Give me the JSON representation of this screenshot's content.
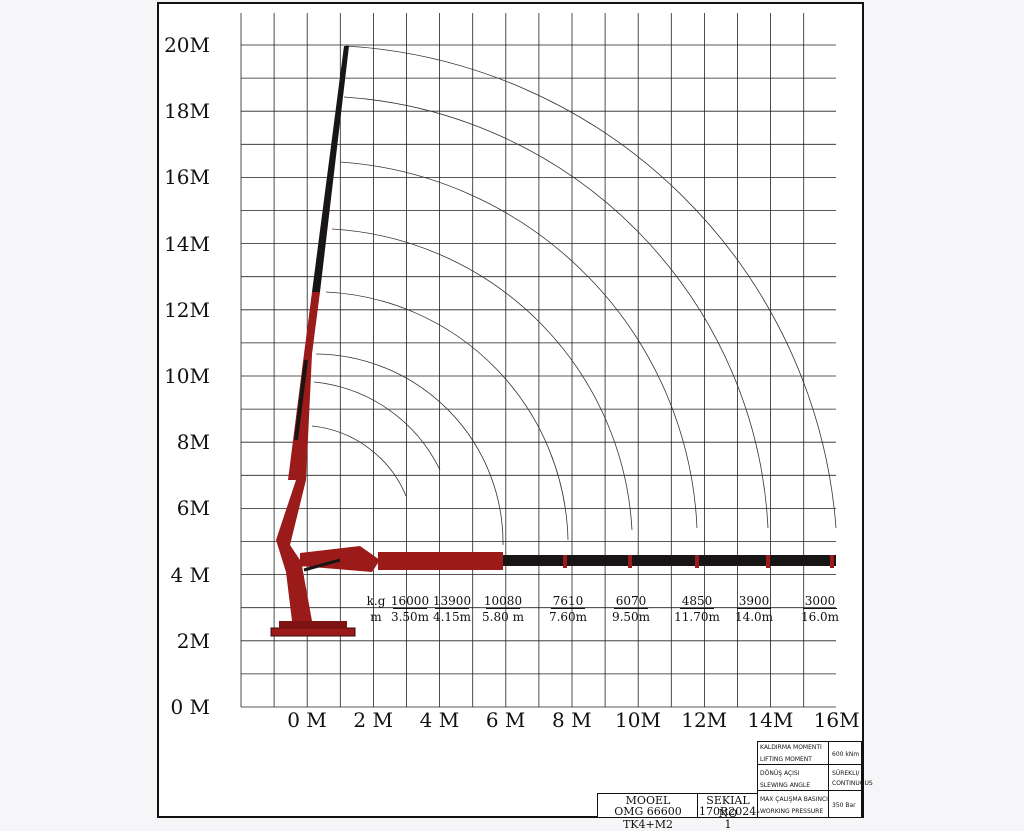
{
  "chart_data": {
    "type": "diagram",
    "y_axis_labels": [
      "20M",
      "18M",
      "16M",
      "14M",
      "12M",
      "10M",
      "8M",
      "6M",
      "4 M",
      "2M",
      "0 M"
    ],
    "x_axis_labels": [
      "0 M",
      "2 M",
      "4 M",
      "6 M",
      "8 M",
      "10M",
      "12M",
      "14M",
      "16M"
    ],
    "load_table_headers": {
      "weight": "k.g",
      "distance": "m"
    },
    "load_points": [
      {
        "kg": "16000",
        "distance": "3.50m",
        "reach_m": 3.5
      },
      {
        "kg": "13900",
        "distance": "4.15m",
        "reach_m": 4.15
      },
      {
        "kg": "10080",
        "distance": "5.80 m",
        "reach_m": 5.8
      },
      {
        "kg": "7610",
        "distance": "7.60m",
        "reach_m": 7.6
      },
      {
        "kg": "6070",
        "distance": "9.50m",
        "reach_m": 9.5
      },
      {
        "kg": "4850",
        "distance": "11.70m",
        "reach_m": 11.7
      },
      {
        "kg": "3900",
        "distance": "14.0m",
        "reach_m": 14.0
      },
      {
        "kg": "3000",
        "distance": "16.0m",
        "reach_m": 16.0
      }
    ],
    "colors": {
      "crane_red": "#9b1a1a",
      "boom_dark": "#1a1515",
      "grid": "#222222"
    }
  },
  "title_block": {
    "model_label": "MOOEL",
    "model_value": "OMG 66600 TK4+M2",
    "serial_label": "SEKIAL NO",
    "serial_value": "170R2024-1",
    "lifting_moment_tr": "KALDIRMA MOMENTI",
    "lifting_moment_en": "LIFTING MOMENT",
    "lifting_moment_value": "600 kNm",
    "slewing_angle_tr": "DÖNÜŞ AÇISI",
    "slewing_angle_en": "SLEWING ANGLE",
    "slewing_angle_value_1": "SÜREKLI/",
    "slewing_angle_value_2": "CONTINUOUS",
    "working_pressure_tr": "MAX ÇALIŞMA BASINCI",
    "working_pressure_en": "WORKING PRESSURE",
    "working_pressure_value": "350 Bar"
  }
}
